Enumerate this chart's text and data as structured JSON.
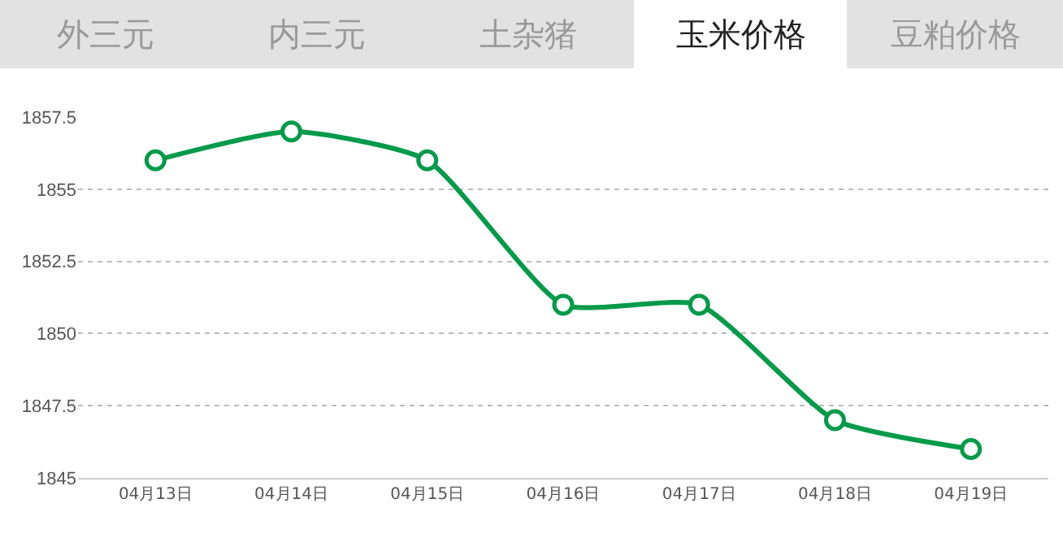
{
  "chart_data": {
    "type": "line",
    "categories": [
      "04月13日",
      "04月14日",
      "04月15日",
      "04月16日",
      "04月17日",
      "04月18日",
      "04月19日"
    ],
    "series": [
      {
        "color": "#009a4a",
        "values": [
          1856,
          1857,
          1856,
          1851,
          1851,
          1847,
          1846
        ]
      }
    ],
    "ylim": [
      1845,
      1857.5
    ],
    "yticks": [
      1845,
      1847.5,
      1850,
      1852.5,
      1855,
      1857.5
    ],
    "grid": "y",
    "marker": "circle",
    "line_style": "solid",
    "legend": false,
    "annotations": [
      "外三元",
      "内三元",
      "土杂猪",
      "玉米价格",
      "豆粕价格"
    ]
  }
}
